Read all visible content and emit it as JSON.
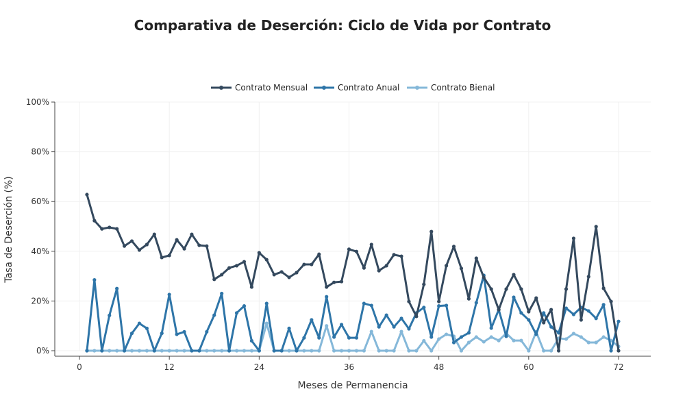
{
  "chart_data": {
    "type": "line",
    "title": "Comparativa de Deserción: Ciclo de Vida por Contrato",
    "xlabel": "Meses de Permanencia",
    "ylabel": "Tasa de Deserción (%)",
    "xlim": [
      -3,
      75
    ],
    "ylim": [
      0,
      100
    ],
    "xticks": [
      0,
      12,
      24,
      36,
      48,
      60,
      72
    ],
    "yticks": [
      0,
      20,
      40,
      60,
      80,
      100
    ],
    "ytick_labels": [
      "0%",
      "20%",
      "40%",
      "60%",
      "80%",
      "100%"
    ],
    "grid": true,
    "legend_placement": "top-center",
    "x": [
      1,
      2,
      3,
      4,
      5,
      6,
      7,
      8,
      9,
      10,
      11,
      12,
      13,
      14,
      15,
      16,
      17,
      18,
      19,
      20,
      21,
      22,
      23,
      24,
      25,
      26,
      27,
      28,
      29,
      30,
      31,
      32,
      33,
      34,
      35,
      36,
      37,
      38,
      39,
      40,
      41,
      42,
      43,
      44,
      45,
      46,
      47,
      48,
      49,
      50,
      51,
      52,
      53,
      54,
      55,
      56,
      57,
      58,
      59,
      60,
      61,
      62,
      63,
      64,
      65,
      66,
      67,
      68,
      69,
      70,
      71,
      72
    ],
    "series": [
      {
        "name": "Contrato Mensual",
        "color": "#34495e",
        "values": [
          62.8,
          52.3,
          49.0,
          49.6,
          49.0,
          42.1,
          44.1,
          40.5,
          42.7,
          46.8,
          37.5,
          38.3,
          44.6,
          41.0,
          46.8,
          42.4,
          42.1,
          28.7,
          30.6,
          33.3,
          34.2,
          35.8,
          25.6,
          39.4,
          36.6,
          30.6,
          31.7,
          29.5,
          31.4,
          34.7,
          34.7,
          38.8,
          25.6,
          27.5,
          27.8,
          40.8,
          39.9,
          33.3,
          42.7,
          32.2,
          34.2,
          38.6,
          38.0,
          19.8,
          13.8,
          26.7,
          47.9,
          19.8,
          34.2,
          41.9,
          33.1,
          20.9,
          37.2,
          29.5,
          24.8,
          16.5,
          24.8,
          30.6,
          24.8,
          15.7,
          21.2,
          11.3,
          16.5,
          0,
          24.8,
          45.2,
          12.4,
          29.8,
          49.9,
          25.1,
          19.8,
          0
        ]
      },
      {
        "name": "Contrato Anual",
        "color": "#2e75a8",
        "values": [
          0,
          28.5,
          0,
          14.2,
          25,
          0,
          7,
          11,
          9,
          0,
          7,
          22.6,
          6.6,
          7.6,
          0,
          0,
          7.6,
          14.3,
          23,
          0,
          15.2,
          18,
          4,
          0,
          19,
          0,
          0,
          9,
          0,
          5.2,
          12.4,
          5.2,
          21.7,
          5.5,
          10.5,
          5.2,
          5.2,
          19,
          18.2,
          9.6,
          14.3,
          9.6,
          13,
          8.8,
          15.2,
          17.4,
          5.5,
          18,
          18.2,
          3.3,
          5.5,
          7.2,
          19.3,
          30.3,
          9.1,
          16.5,
          5.8,
          21.5,
          15.2,
          12.4,
          6.6,
          15.2,
          9.6,
          7.2,
          17.1,
          14.6,
          17.4,
          16,
          13,
          18.5,
          0,
          11.8
        ]
      },
      {
        "name": "Contrato Bienal",
        "color": "#85b8d9",
        "values": [
          0,
          0,
          0,
          0,
          0,
          0,
          0,
          0,
          0,
          0,
          0,
          0,
          0,
          0,
          0,
          0,
          0,
          0,
          0,
          0,
          0,
          0,
          0,
          0,
          11,
          0,
          0,
          0,
          0,
          0,
          0,
          0,
          10,
          0,
          0,
          0,
          0,
          0,
          7.7,
          0,
          0,
          0,
          7.7,
          0,
          0,
          4,
          0,
          4.7,
          6.6,
          5.8,
          0,
          3.3,
          5.5,
          3.6,
          5.5,
          4.1,
          7,
          4.1,
          4.1,
          0,
          7.6,
          0,
          0,
          5,
          4.7,
          6.9,
          5.5,
          3.3,
          3.3,
          5.5,
          4.1,
          1.7
        ]
      }
    ]
  }
}
